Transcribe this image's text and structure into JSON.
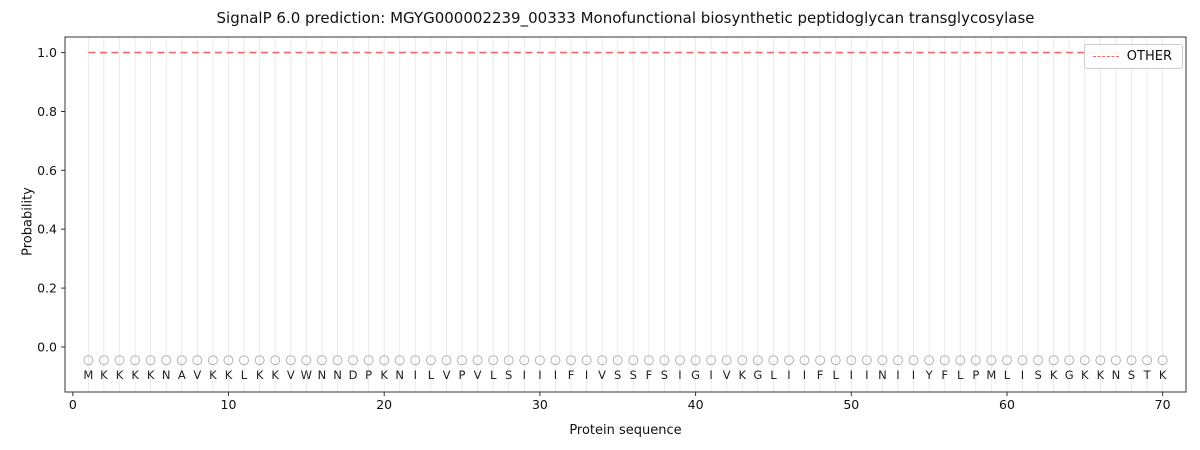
{
  "chart_data": {
    "type": "line",
    "title": "SignalP 6.0 prediction: MGYG000002239_00333 Monofunctional biosynthetic peptidoglycan transglycosylase",
    "xlabel": "Protein sequence",
    "ylabel": "Probability",
    "xlim": [
      -0.5,
      71.5
    ],
    "ylim": [
      -0.153,
      1.053
    ],
    "x_ticks": [
      0,
      10,
      20,
      30,
      40,
      50,
      60,
      70
    ],
    "y_ticks": [
      0.0,
      0.2,
      0.4,
      0.6,
      0.8,
      1.0
    ],
    "grid": "vertical line at every residue position, light gray",
    "legend": {
      "position": "upper right",
      "entries": [
        "OTHER"
      ]
    },
    "residues": [
      "M",
      "K",
      "K",
      "K",
      "K",
      "N",
      "A",
      "V",
      "K",
      "K",
      "L",
      "K",
      "K",
      "V",
      "W",
      "N",
      "N",
      "D",
      "P",
      "K",
      "N",
      "I",
      "L",
      "V",
      "P",
      "V",
      "L",
      "S",
      "I",
      "I",
      "I",
      "F",
      "I",
      "V",
      "S",
      "S",
      "F",
      "S",
      "I",
      "G",
      "I",
      "V",
      "K",
      "G",
      "L",
      "I",
      "I",
      "F",
      "L",
      "I",
      "I",
      "N",
      "I",
      "I",
      "Y",
      "F",
      "L",
      "P",
      "M",
      "L",
      "I",
      "S",
      "K",
      "G",
      "K",
      "K",
      "N",
      "S",
      "T",
      "K"
    ],
    "series": [
      {
        "name": "OTHER",
        "style": "dashed",
        "color": "#e96a6a",
        "x": [
          1,
          2,
          3,
          4,
          5,
          6,
          7,
          8,
          9,
          10,
          11,
          12,
          13,
          14,
          15,
          16,
          17,
          18,
          19,
          20,
          21,
          22,
          23,
          24,
          25,
          26,
          27,
          28,
          29,
          30,
          31,
          32,
          33,
          34,
          35,
          36,
          37,
          38,
          39,
          40,
          41,
          42,
          43,
          44,
          45,
          46,
          47,
          48,
          49,
          50,
          51,
          52,
          53,
          54,
          55,
          56,
          57,
          58,
          59,
          60,
          61,
          62,
          63,
          64,
          65,
          66,
          67,
          68,
          69,
          70
        ],
        "values": [
          1.0,
          1.0,
          1.0,
          1.0,
          1.0,
          1.0,
          1.0,
          1.0,
          1.0,
          1.0,
          1.0,
          1.0,
          1.0,
          1.0,
          1.0,
          1.0,
          1.0,
          1.0,
          1.0,
          1.0,
          1.0,
          1.0,
          1.0,
          1.0,
          1.0,
          1.0,
          1.0,
          1.0,
          1.0,
          1.0,
          1.0,
          1.0,
          1.0,
          1.0,
          1.0,
          1.0,
          1.0,
          1.0,
          1.0,
          1.0,
          1.0,
          1.0,
          1.0,
          1.0,
          1.0,
          1.0,
          1.0,
          1.0,
          1.0,
          1.0,
          1.0,
          1.0,
          1.0,
          1.0,
          1.0,
          1.0,
          1.0,
          1.0,
          1.0,
          1.0,
          1.0,
          1.0,
          1.0,
          1.0,
          1.0,
          1.0,
          1.0,
          1.0,
          1.0,
          1.0
        ]
      }
    ],
    "residue_markers": {
      "shape": "circle-open",
      "color": "#b3b3b3",
      "y": -0.045
    },
    "colors": {
      "axis": "#333333",
      "grid": "#e6e6e6",
      "text": "#111111"
    }
  }
}
